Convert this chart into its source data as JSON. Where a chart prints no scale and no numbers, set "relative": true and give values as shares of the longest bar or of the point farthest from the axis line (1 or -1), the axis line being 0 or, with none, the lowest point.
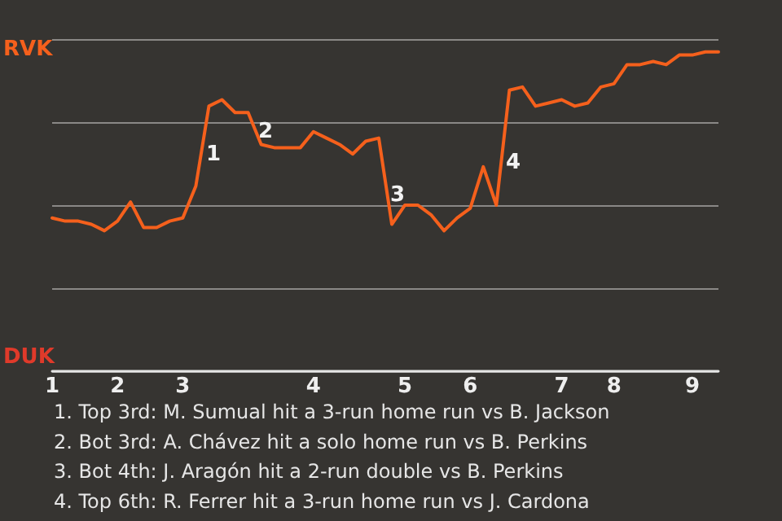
{
  "chart_data": {
    "type": "line",
    "relative": true,
    "categories": [
      "1",
      null,
      null,
      null,
      null,
      "2",
      null,
      null,
      null,
      null,
      "3",
      null,
      null,
      null,
      null,
      null,
      null,
      null,
      null,
      null,
      "4",
      null,
      null,
      null,
      null,
      null,
      null,
      "5",
      null,
      null,
      null,
      null,
      "6",
      null,
      null,
      null,
      null,
      null,
      null,
      "7",
      null,
      null,
      null,
      "8",
      null,
      null,
      null,
      null,
      null,
      "9",
      null,
      null
    ],
    "series": [
      {
        "color": "#f5601c",
        "values": [
          0.48,
          0.47,
          0.47,
          0.46,
          0.44,
          0.47,
          0.53,
          0.45,
          0.45,
          0.47,
          0.48,
          0.58,
          0.83,
          0.85,
          0.81,
          0.81,
          0.71,
          0.7,
          0.7,
          0.7,
          0.75,
          0.73,
          0.71,
          0.68,
          0.72,
          0.73,
          0.46,
          0.52,
          0.52,
          0.49,
          0.44,
          0.48,
          0.51,
          0.64,
          0.52,
          0.88,
          0.89,
          0.83,
          0.84,
          0.85,
          0.83,
          0.84,
          0.89,
          0.9,
          0.96,
          0.96,
          0.97,
          0.96,
          0.99,
          0.99,
          1,
          1
        ]
      }
    ],
    "grid": "y",
    "marker": "none",
    "line_style": "solid",
    "annotations": [
      "RVK",
      "DUK",
      "1",
      "2",
      "3",
      "4",
      "1. Top 3rd: M. Sumual hit a 3-run home run vs B. Jackson",
      "2. Bot 3rd: A. Chávez hit a solo home run vs B. Perkins",
      "3. Bot 4th: J. Aragón hit a 2-run double vs B. Perkins",
      "4. Top 6th: R. Ferrer hit a 3-run home run vs J. Cardona"
    ]
  }
}
